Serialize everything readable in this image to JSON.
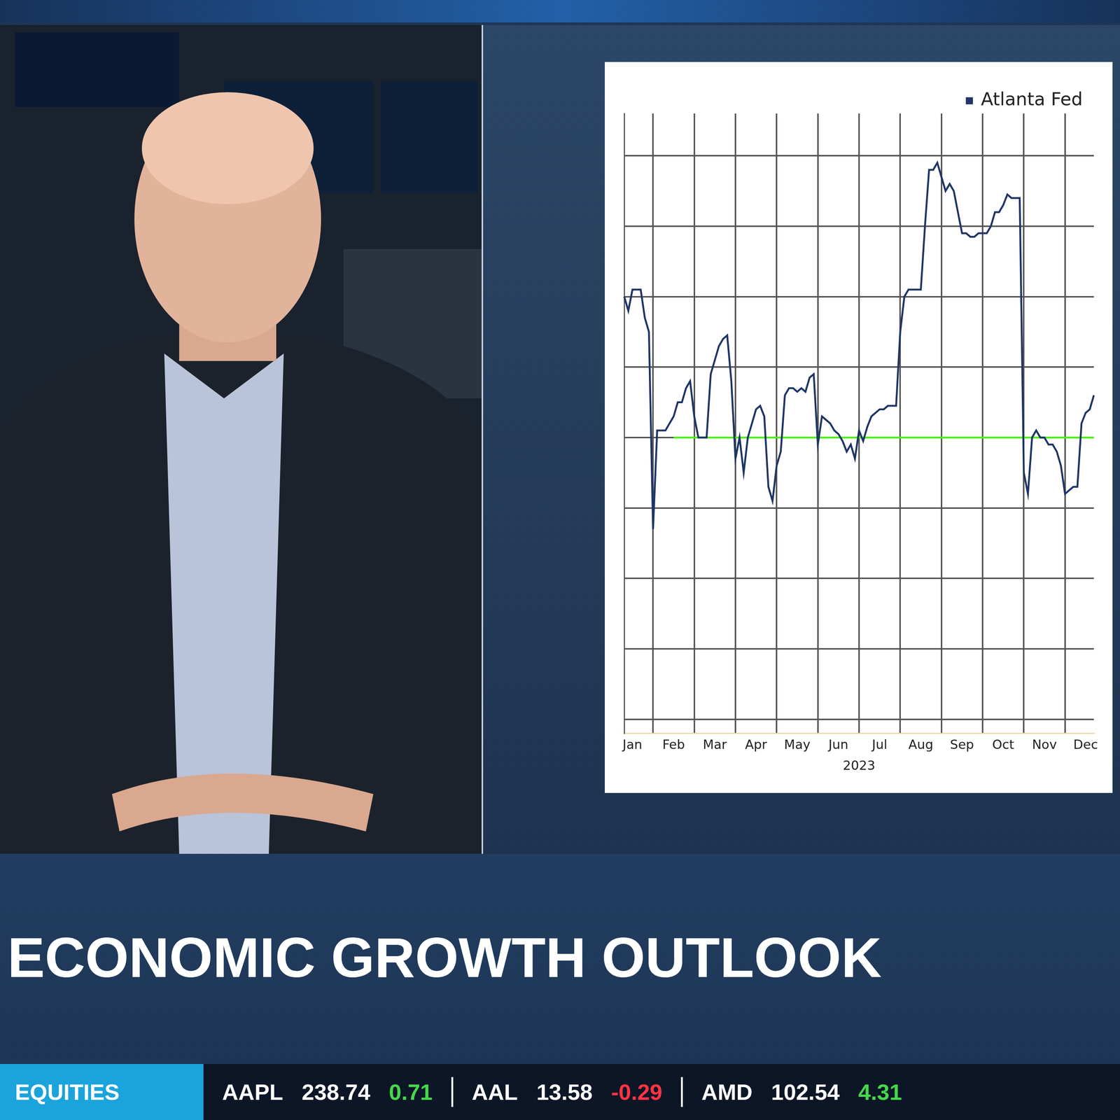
{
  "banner": {
    "headline": "ECONOMIC GROWTH OUTLOOK"
  },
  "ticker": {
    "section": "EQUITIES",
    "quotes": [
      {
        "symbol": "AAPL",
        "price": 238.74,
        "change": 0.71
      },
      {
        "symbol": "AAL",
        "price": 13.58,
        "change": -0.29
      },
      {
        "symbol": "AMD",
        "price": 102.54,
        "change": 4.31
      }
    ]
  },
  "chart_data": {
    "type": "line",
    "xlabel": "2023",
    "categories": [
      null,
      null,
      "Jan",
      null,
      null,
      null,
      null,
      null,
      null,
      null,
      null,
      null,
      "Feb",
      null,
      null,
      null,
      null,
      null,
      null,
      null,
      null,
      null,
      "Mar",
      null,
      null,
      null,
      null,
      null,
      null,
      null,
      null,
      null,
      "Apr",
      null,
      null,
      null,
      null,
      null,
      null,
      null,
      null,
      null,
      "May",
      null,
      null,
      null,
      null,
      null,
      null,
      null,
      null,
      null,
      "Jun",
      null,
      null,
      null,
      null,
      null,
      null,
      null,
      null,
      null,
      "Jul",
      null,
      null,
      null,
      null,
      null,
      null,
      null,
      null,
      null,
      "Aug",
      null,
      null,
      null,
      null,
      null,
      null,
      null,
      null,
      null,
      "Sep",
      null,
      null,
      null,
      null,
      null,
      null,
      null,
      null,
      null,
      "Oct",
      null,
      null,
      null,
      null,
      null,
      null,
      null,
      null,
      null,
      "Nov",
      null,
      null,
      null,
      null,
      null,
      null,
      null,
      null,
      null,
      "Dec",
      null,
      null
    ],
    "series": [
      {
        "name": "Atlanta Fed",
        "color": "#1f3566",
        "line_style": "solid",
        "marker": "none",
        "values": [
          4.0,
          3.8,
          4.1,
          4.1,
          4.1,
          3.7,
          3.5,
          0.7,
          2.1,
          2.1,
          2.1,
          2.2,
          2.3,
          2.5,
          2.5,
          2.7,
          2.8,
          2.3,
          2.0,
          2.0,
          2.0,
          2.9,
          3.1,
          3.3,
          3.4,
          3.45,
          2.8,
          1.7,
          2.0,
          1.5,
          2.0,
          2.2,
          2.4,
          2.45,
          2.3,
          1.3,
          1.1,
          1.6,
          1.8,
          2.6,
          2.7,
          2.7,
          2.65,
          2.7,
          2.65,
          2.85,
          2.9,
          1.9,
          2.3,
          2.25,
          2.2,
          2.1,
          2.05,
          1.95,
          1.8,
          1.9,
          1.7,
          2.1,
          1.95,
          2.15,
          2.3,
          2.35,
          2.4,
          2.4,
          2.45,
          2.45,
          2.45,
          3.5,
          4.0,
          4.1,
          4.1,
          4.1,
          4.1,
          5.0,
          5.8,
          5.8,
          5.9,
          5.7,
          5.5,
          5.6,
          5.5,
          5.2,
          4.9,
          4.9,
          4.85,
          4.85,
          4.9,
          4.9,
          4.9,
          5.0,
          5.2,
          5.2,
          5.3,
          5.45,
          5.4,
          5.4,
          5.4,
          1.5,
          1.2,
          2.0,
          2.1,
          2.0,
          2.0,
          1.9,
          1.9,
          1.8,
          1.6,
          1.2,
          1.25,
          1.3,
          1.3,
          2.2,
          2.35,
          2.4,
          2.6
        ]
      },
      {
        "color": "#4cee1c",
        "line_style": "solid",
        "marker": "none",
        "values": [
          null,
          null,
          null,
          null,
          null,
          null,
          null,
          null,
          null,
          null,
          null,
          null,
          2,
          2,
          2,
          2,
          2,
          2,
          2,
          2,
          2,
          2,
          2,
          2,
          2,
          2,
          2,
          2,
          2,
          2,
          2,
          2,
          2,
          2,
          2,
          2,
          2,
          2,
          2,
          2,
          2,
          2,
          2,
          2,
          2,
          2,
          2,
          2,
          2,
          2,
          2,
          2,
          2,
          2,
          2,
          2,
          2,
          2,
          2,
          2,
          2,
          2,
          2,
          2,
          2,
          2,
          2,
          2,
          2,
          2,
          2,
          2,
          2,
          2,
          2,
          2,
          2,
          2,
          2,
          2,
          2,
          2,
          2,
          2,
          2,
          2,
          2,
          2,
          2,
          2,
          2,
          2,
          2,
          2,
          2,
          2,
          2,
          2,
          2,
          2,
          2,
          2,
          2,
          2,
          2,
          2,
          2,
          2,
          2,
          2,
          2,
          2,
          2,
          2,
          2
        ]
      }
    ],
    "ylim": [
      -2.2,
      6.6
    ],
    "yticks": [
      -2,
      -1,
      0,
      1,
      2,
      3,
      4,
      5,
      6
    ],
    "grid": true,
    "legend": "top-right",
    "tick_labels": "x"
  }
}
